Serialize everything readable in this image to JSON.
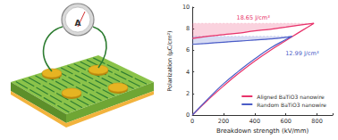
{
  "illustration": {
    "meter_label": "A"
  },
  "chart_data": {
    "type": "line",
    "x_label": "Breakdown strength (kV/mm)",
    "y_label": "Polarization (μC/cm²)",
    "xlim": [
      0,
      900
    ],
    "xticks": [
      0,
      200,
      400,
      600,
      800
    ],
    "ylim": [
      0,
      10
    ],
    "yticks": [
      0,
      2,
      4,
      6,
      8,
      10
    ],
    "grid": false,
    "legend": "lower right",
    "series": [
      {
        "name": "Aligned BaTiO3 nanowire",
        "color": "#e8336b",
        "annotation": "18.65 J/cm³",
        "x": [
          0,
          100,
          200,
          300,
          400,
          500,
          600,
          700,
          780,
          700,
          600,
          500,
          400,
          300,
          200,
          100,
          0
        ],
        "values": [
          0,
          1.4,
          2.7,
          3.9,
          5.0,
          6.0,
          6.9,
          7.8,
          8.5,
          8.35,
          8.15,
          7.95,
          7.8,
          7.6,
          7.45,
          7.3,
          7.1
        ]
      },
      {
        "name": "Random BaTiO3 nanowire",
        "color": "#4a5cc7",
        "annotation": "12.99 J/cm³",
        "x": [
          0,
          100,
          200,
          300,
          400,
          500,
          600,
          640,
          600,
          500,
          400,
          300,
          200,
          100,
          0
        ],
        "values": [
          0,
          1.5,
          2.9,
          4.1,
          5.2,
          6.2,
          7.0,
          7.3,
          7.2,
          7.05,
          6.95,
          6.85,
          6.75,
          6.65,
          6.55
        ]
      }
    ]
  }
}
